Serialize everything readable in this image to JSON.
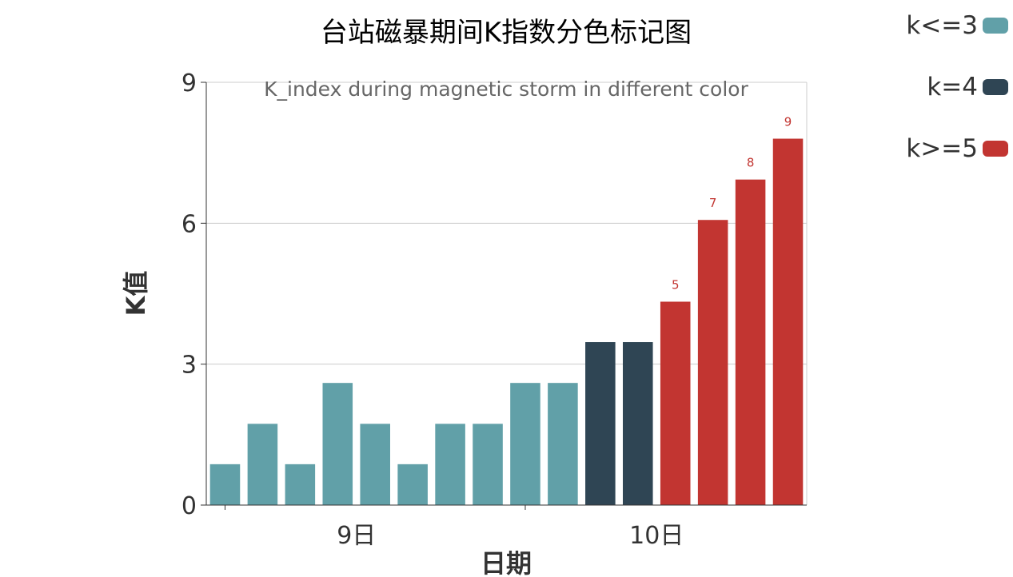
{
  "chart_data": {
    "type": "bar",
    "title": "台站磁暴期间K指数分色标记图",
    "subtitle": "K_index during magnetic storm in different color",
    "xlabel": "日期",
    "ylabel": "K值",
    "ylim": [
      0,
      9
    ],
    "yticks": [
      "0",
      "3",
      "6",
      "9"
    ],
    "xticks": [
      {
        "label": "9日",
        "at_bar": 4
      },
      {
        "label": "10日",
        "at_bar": 12
      }
    ],
    "values": [
      0.87,
      1.73,
      0.87,
      2.6,
      1.73,
      0.87,
      1.73,
      1.73,
      2.6,
      2.6,
      3.47,
      3.47,
      4.33,
      6.07,
      6.93,
      7.8
    ],
    "k_values": [
      1,
      2,
      1,
      3,
      2,
      1,
      2,
      2,
      3,
      3,
      4,
      4,
      5,
      7,
      8,
      9
    ],
    "colors": {
      "low": "#61a0a8",
      "mid": "#2f4554",
      "high": "#c23531"
    },
    "data_labels": [
      "",
      "",
      "",
      "",
      "",
      "",
      "",
      "",
      "",
      "",
      "",
      "",
      "5",
      "7",
      "8",
      "9"
    ],
    "legend": [
      {
        "label": "k<=3",
        "color": "#61a0a8"
      },
      {
        "label": "k=4",
        "color": "#2f4554"
      },
      {
        "label": "k>=5",
        "color": "#c23531"
      }
    ],
    "legend_position": "top-right",
    "grid": true
  }
}
